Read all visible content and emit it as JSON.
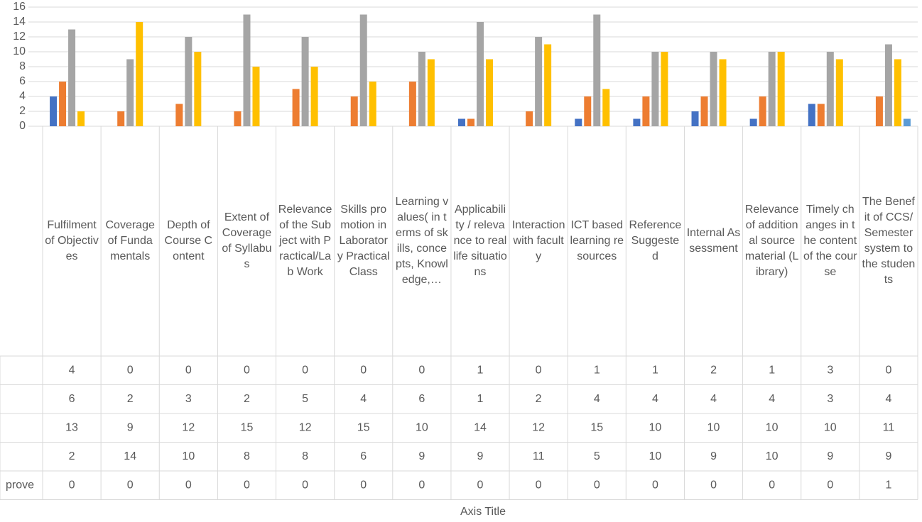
{
  "chart_data": {
    "type": "bar",
    "categories": [
      "Fulfilment of Objectives",
      "Coverage of Fundamentals",
      "Depth of Course Content",
      "Extent of Coverage of Syllabus",
      "Relevance of the Subject with Practical/Lab Work",
      "Skills promotion in Laboratory Practical Class",
      "Learning values( in terms of skills, concepts, Knowledge,…",
      "Applicability / relevance to real life situations",
      "Interaction with faculty",
      "ICT based learning resources",
      "Reference Suggested",
      "Internal Assessment",
      "Relevance of additional source material (Library)",
      "Timely changes in the content of the course",
      "The Benefit of CCS/ Semester system to the students"
    ],
    "series": [
      {
        "color": "#4472c4",
        "values": [
          4,
          0,
          0,
          0,
          0,
          0,
          0,
          1,
          0,
          1,
          1,
          2,
          1,
          3,
          0
        ]
      },
      {
        "color": "#ed7d31",
        "values": [
          6,
          2,
          3,
          2,
          5,
          4,
          6,
          1,
          2,
          4,
          4,
          4,
          4,
          3,
          4
        ]
      },
      {
        "color": "#a5a5a5",
        "values": [
          13,
          9,
          12,
          15,
          12,
          15,
          10,
          14,
          12,
          15,
          10,
          10,
          10,
          10,
          11
        ]
      },
      {
        "color": "#ffc000",
        "values": [
          2,
          14,
          10,
          8,
          8,
          6,
          9,
          9,
          11,
          5,
          10,
          9,
          10,
          9,
          9
        ]
      },
      {
        "name": "prove",
        "color": "#5b9bd5",
        "values": [
          0,
          0,
          0,
          0,
          0,
          0,
          0,
          0,
          0,
          0,
          0,
          0,
          0,
          0,
          1
        ]
      }
    ],
    "ylim": [
      0,
      16
    ],
    "yticks": [
      0,
      2,
      4,
      6,
      8,
      10,
      12,
      14,
      16
    ],
    "grid": true,
    "x_axis_title": "Axis Title"
  }
}
